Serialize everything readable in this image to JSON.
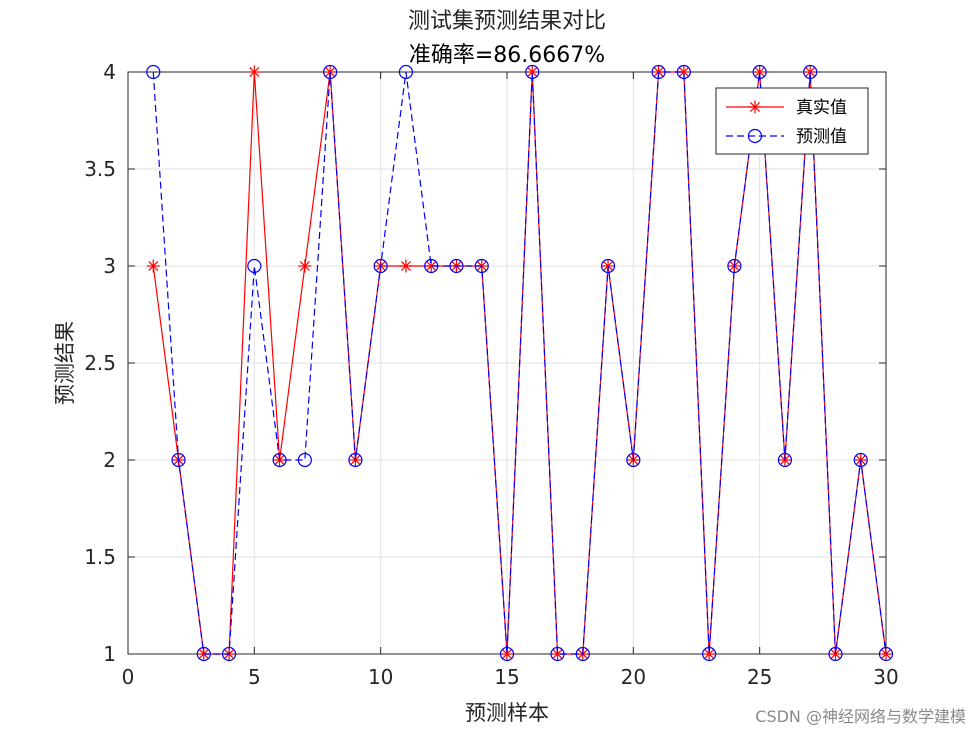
{
  "chart_data": {
    "type": "line",
    "title": "测试集预测结果对比",
    "subtitle": "准确率=86.6667%",
    "xlabel": "预测样本",
    "ylabel": "预测结果",
    "xlim": [
      0,
      30
    ],
    "ylim": [
      1,
      4
    ],
    "x_ticks": [
      "0",
      "5",
      "10",
      "15",
      "20",
      "25",
      "30"
    ],
    "y_ticks": [
      "1",
      "1.5",
      "2",
      "2.5",
      "3",
      "3.5",
      "4"
    ],
    "grid": true,
    "legend_position": "top-right",
    "x": [
      1,
      2,
      3,
      4,
      5,
      6,
      7,
      8,
      9,
      10,
      11,
      12,
      13,
      14,
      15,
      16,
      17,
      18,
      19,
      20,
      21,
      22,
      23,
      24,
      25,
      26,
      27,
      28,
      29,
      30
    ],
    "series": [
      {
        "name": "真实值",
        "color": "#ff0000",
        "line_style": "solid",
        "marker": "asterisk",
        "values": [
          3,
          2,
          1,
          1,
          4,
          2,
          3,
          4,
          2,
          3,
          3,
          3,
          3,
          3,
          1,
          4,
          1,
          1,
          3,
          2,
          4,
          4,
          1,
          3,
          4,
          2,
          4,
          1,
          2,
          1
        ]
      },
      {
        "name": "预测值",
        "color": "#0000ff",
        "line_style": "dashed",
        "marker": "circle",
        "values": [
          4,
          2,
          1,
          1,
          3,
          2,
          2,
          4,
          2,
          3,
          4,
          3,
          3,
          3,
          1,
          4,
          1,
          1,
          3,
          2,
          4,
          4,
          1,
          3,
          4,
          2,
          4,
          1,
          2,
          1
        ]
      }
    ]
  },
  "watermark": "CSDN @神经网络与数学建模"
}
